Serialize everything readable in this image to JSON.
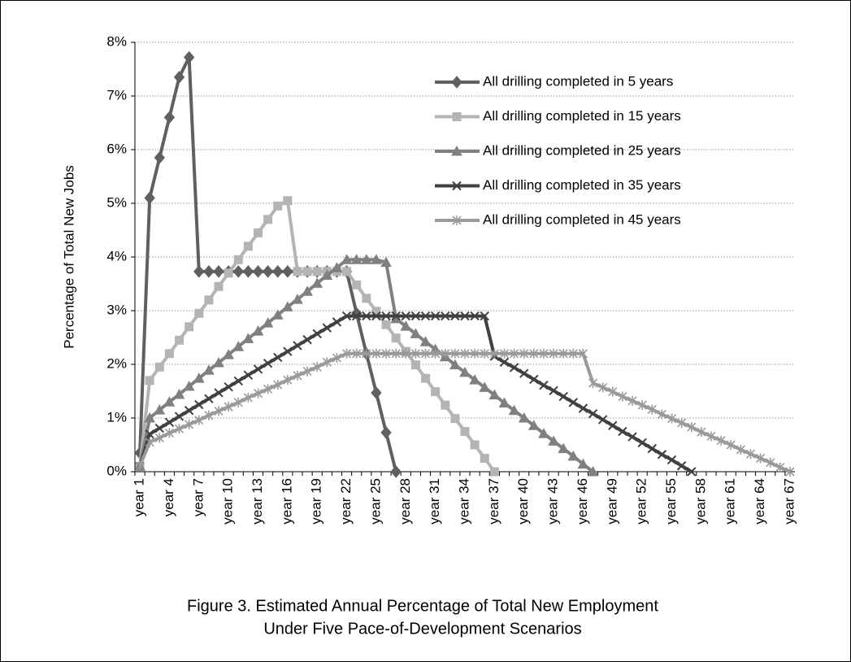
{
  "chart_data": {
    "type": "line",
    "title": [
      "Figure 3. Estimated Annual Percentage of Total New Employment",
      "Under Five Pace-of-Development Scenarios"
    ],
    "ylabel": "Percentage of Total New Jobs",
    "categories": [
      "year 1",
      null,
      null,
      "year 4",
      null,
      null,
      "year 7",
      null,
      null,
      "year 10",
      null,
      null,
      "year 13",
      null,
      null,
      "year 16",
      null,
      null,
      "year 19",
      null,
      null,
      "year 22",
      null,
      null,
      "year 25",
      null,
      null,
      "year 28",
      null,
      null,
      "year 31",
      null,
      null,
      "year 34",
      null,
      null,
      "year 37",
      null,
      null,
      "year 40",
      null,
      null,
      "year 43",
      null,
      null,
      "year 46",
      null,
      null,
      "year 49",
      null,
      null,
      "year 52",
      null,
      null,
      "year 55",
      null,
      null,
      "year 58",
      null,
      null,
      "year 61",
      null,
      null,
      "year 64",
      null,
      null,
      "year 67"
    ],
    "ylim": [
      0,
      8
    ],
    "yticks": [
      {
        "value": 0,
        "label": "0%"
      },
      {
        "value": 1,
        "label": "1%"
      },
      {
        "value": 2,
        "label": "2%"
      },
      {
        "value": 3,
        "label": "3%"
      },
      {
        "value": 4,
        "label": "4%"
      },
      {
        "value": 5,
        "label": "5%"
      },
      {
        "value": 6,
        "label": "6%"
      },
      {
        "value": 7,
        "label": "7%"
      },
      {
        "value": 8,
        "label": "8%"
      }
    ],
    "grid": true,
    "legend": "upper right",
    "series": [
      {
        "name": "All drilling completed in 5 years",
        "color": "#606060",
        "marker": "diamond",
        "values": [
          0.35,
          5.1,
          5.85,
          6.6,
          7.35,
          7.72,
          3.73,
          3.73,
          3.73,
          3.73,
          3.73,
          3.73,
          3.73,
          3.73,
          3.73,
          3.73,
          3.73,
          3.73,
          3.73,
          3.73,
          3.73,
          3.73,
          2.95,
          2.2,
          1.47,
          0.73,
          0,
          null,
          null,
          null,
          null,
          null,
          null,
          null,
          null,
          null,
          null,
          null,
          null,
          null,
          null,
          null,
          null,
          null,
          null,
          null,
          null,
          null,
          null,
          null,
          null,
          null,
          null,
          null,
          null,
          null,
          null,
          null,
          null,
          null,
          null,
          null,
          null,
          null,
          null,
          null,
          null
        ]
      },
      {
        "name": "All drilling completed in 15 years",
        "color": "#b4b4b4",
        "marker": "square",
        "values": [
          0.1,
          1.7,
          1.95,
          2.2,
          2.45,
          2.7,
          2.95,
          3.2,
          3.45,
          3.7,
          3.95,
          4.2,
          4.45,
          4.7,
          4.95,
          5.05,
          3.73,
          3.73,
          3.73,
          3.73,
          3.73,
          3.73,
          3.48,
          3.23,
          2.99,
          2.74,
          2.49,
          2.24,
          1.99,
          1.74,
          1.49,
          1.24,
          0.99,
          0.75,
          0.5,
          0.25,
          0,
          null,
          null,
          null,
          null,
          null,
          null,
          null,
          null,
          null,
          null,
          null,
          null,
          null,
          null,
          null,
          null,
          null,
          null,
          null,
          null,
          null,
          null,
          null,
          null,
          null,
          null,
          null,
          null,
          null,
          null
        ]
      },
      {
        "name": "All drilling completed in 25 years",
        "color": "#808080",
        "marker": "triangle",
        "values": [
          0.1,
          1.0,
          1.15,
          1.3,
          1.44,
          1.59,
          1.74,
          1.89,
          2.03,
          2.18,
          2.33,
          2.48,
          2.62,
          2.77,
          2.92,
          3.07,
          3.21,
          3.36,
          3.51,
          3.66,
          3.8,
          3.95,
          3.95,
          3.95,
          3.95,
          3.9,
          2.85,
          2.71,
          2.57,
          2.42,
          2.28,
          2.14,
          1.99,
          1.85,
          1.71,
          1.57,
          1.43,
          1.28,
          1.14,
          1.0,
          0.86,
          0.71,
          0.57,
          0.43,
          0.29,
          0.14,
          0,
          null,
          null,
          null,
          null,
          null,
          null,
          null,
          null,
          null,
          null,
          null,
          null,
          null,
          null,
          null,
          null,
          null,
          null,
          null,
          null
        ]
      },
      {
        "name": "All drilling completed in 35 years",
        "color": "#404040",
        "marker": "x",
        "values": [
          0.1,
          0.7,
          0.81,
          0.92,
          1.03,
          1.14,
          1.25,
          1.36,
          1.47,
          1.58,
          1.69,
          1.8,
          1.91,
          2.02,
          2.13,
          2.24,
          2.35,
          2.46,
          2.57,
          2.68,
          2.79,
          2.9,
          2.9,
          2.9,
          2.9,
          2.9,
          2.9,
          2.9,
          2.9,
          2.9,
          2.9,
          2.9,
          2.9,
          2.9,
          2.9,
          2.9,
          2.15,
          2.04,
          1.94,
          1.83,
          1.72,
          1.61,
          1.51,
          1.4,
          1.29,
          1.18,
          1.08,
          0.97,
          0.86,
          0.75,
          0.65,
          0.54,
          0.43,
          0.32,
          0.22,
          0.11,
          0,
          null,
          null,
          null,
          null,
          null,
          null,
          null,
          null,
          null,
          null
        ]
      },
      {
        "name": "All drilling completed in 45 years",
        "color": "#9a9a9a",
        "marker": "star",
        "values": [
          0.1,
          0.55,
          0.63,
          0.72,
          0.8,
          0.88,
          0.96,
          1.05,
          1.13,
          1.21,
          1.29,
          1.38,
          1.46,
          1.54,
          1.62,
          1.71,
          1.79,
          1.87,
          1.95,
          2.04,
          2.12,
          2.2,
          2.2,
          2.2,
          2.2,
          2.2,
          2.2,
          2.2,
          2.2,
          2.2,
          2.2,
          2.2,
          2.2,
          2.2,
          2.2,
          2.2,
          2.2,
          2.2,
          2.2,
          2.2,
          2.2,
          2.2,
          2.2,
          2.2,
          2.2,
          2.2,
          1.65,
          1.57,
          1.49,
          1.4,
          1.32,
          1.24,
          1.16,
          1.07,
          0.99,
          0.91,
          0.83,
          0.74,
          0.66,
          0.58,
          0.5,
          0.41,
          0.33,
          0.25,
          0.17,
          0.08,
          0
        ]
      }
    ]
  }
}
